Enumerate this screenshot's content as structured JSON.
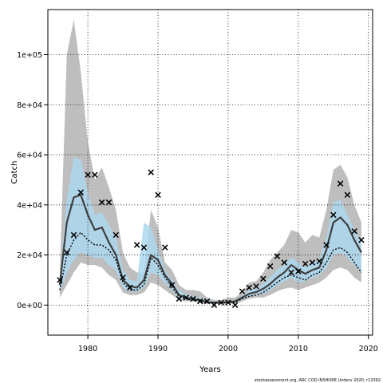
{
  "chart_data": {
    "type": "line",
    "title": "",
    "xlabel": "Years",
    "ylabel": "Catch",
    "xlim": [
      1974.3,
      2020.6
    ],
    "ylim": [
      -12000,
      118000
    ],
    "x_ticks": [
      1980,
      1990,
      2000,
      2010,
      2020
    ],
    "y_ticks": [
      0,
      20000,
      40000,
      60000,
      80000,
      100000
    ],
    "x_tick_labels": [
      "1980",
      "1990",
      "2000",
      "2010",
      "2020"
    ],
    "y_tick_labels": [
      "0e+00",
      "2e+04",
      "4e+04",
      "6e+04",
      "8e+04",
      "1e+05"
    ],
    "grid": true,
    "footer": "stockassessment.org, ARC COD INSHORE Underv 2020, r13392",
    "colors": {
      "grey_band": "#bebebe",
      "blue_band": "#add8f0",
      "estimate_line": "#3f3f3f",
      "dotted_line": "#000000",
      "observed_marker": "#000000"
    },
    "years": [
      1976,
      1977,
      1978,
      1979,
      1980,
      1981,
      1982,
      1983,
      1984,
      1985,
      1986,
      1987,
      1988,
      1989,
      1990,
      1991,
      1992,
      1993,
      1994,
      1995,
      1996,
      1997,
      1998,
      1999,
      2000,
      2001,
      2002,
      2003,
      2004,
      2005,
      2006,
      2007,
      2008,
      2009,
      2010,
      2011,
      2012,
      2013,
      2014,
      2015,
      2016,
      2017,
      2018,
      2019
    ],
    "series": [
      {
        "role": "outer_band_upper",
        "values": [
          12000,
          100000,
          114000,
          93000,
          65000,
          50000,
          55000,
          47000,
          38000,
          21000,
          15000,
          13000,
          13000,
          38000,
          31000,
          17000,
          14000,
          8000,
          6000,
          6000,
          5500,
          3000,
          2000,
          2000,
          3000,
          3000,
          5000,
          9000,
          9500,
          13000,
          18000,
          21000,
          24000,
          30000,
          29000,
          25000,
          28000,
          27000,
          38000,
          54000,
          56000,
          51000,
          40000,
          33000
        ]
      },
      {
        "role": "outer_band_lower",
        "values": [
          3000,
          8000,
          13000,
          17000,
          16000,
          16000,
          15000,
          12000,
          10000,
          5000,
          4000,
          4000,
          5000,
          9000,
          8000,
          6000,
          4000,
          2000,
          1500,
          1500,
          1000,
          500,
          500,
          500,
          500,
          500,
          1500,
          2500,
          3000,
          3000,
          4000,
          5500,
          6500,
          7000,
          6000,
          7000,
          8000,
          9000,
          11000,
          14000,
          15000,
          14000,
          11000,
          9000
        ]
      },
      {
        "role": "inner_band_upper",
        "values": [
          10000,
          42000,
          59000,
          58000,
          45000,
          36000,
          37000,
          32000,
          27000,
          14000,
          10000,
          9500,
          33000,
          31000,
          22000,
          14000,
          10000,
          6000,
          4000,
          3500,
          3000,
          2000,
          1500,
          1500,
          1800,
          2000,
          3500,
          6000,
          6500,
          8500,
          11000,
          14000,
          16000,
          19000,
          17000,
          15000,
          17000,
          18000,
          27000,
          41000,
          42000,
          36000,
          30000,
          25000
        ]
      },
      {
        "role": "inner_band_lower",
        "values": [
          5000,
          13000,
          18000,
          21000,
          20000,
          19000,
          19000,
          16000,
          14000,
          7000,
          5500,
          5500,
          7000,
          13000,
          12000,
          9000,
          6000,
          3000,
          2200,
          2000,
          1500,
          900,
          700,
          700,
          900,
          1000,
          2300,
          3500,
          4200,
          4500,
          6000,
          8000,
          9500,
          11000,
          9000,
          9500,
          11000,
          12000,
          15000,
          20000,
          21000,
          19000,
          16000,
          13000
        ]
      },
      {
        "role": "estimate_line",
        "values": [
          8000,
          33000,
          43000,
          44000,
          36000,
          30000,
          31000,
          25000,
          20000,
          10000,
          7500,
          7000,
          10000,
          20000,
          18000,
          12000,
          8500,
          4000,
          3000,
          2500,
          2000,
          1200,
          1000,
          1000,
          1200,
          1500,
          3000,
          4500,
          5200,
          6500,
          8500,
          11000,
          13000,
          16000,
          14000,
          12500,
          14000,
          15000,
          22000,
          33000,
          35000,
          32000,
          26000,
          21000
        ]
      },
      {
        "role": "dotted_line",
        "values": [
          6000,
          20000,
          26000,
          29000,
          26000,
          24000,
          24000,
          22000,
          18000,
          9000,
          6000,
          6000,
          8000,
          19000,
          16000,
          11000,
          7000,
          3500,
          2500,
          2000,
          1500,
          1000,
          800,
          800,
          1000,
          1200,
          2500,
          3500,
          4000,
          5000,
          7000,
          9000,
          11000,
          12000,
          11000,
          10000,
          12000,
          13000,
          17000,
          22000,
          23000,
          21000,
          17000,
          13000
        ]
      }
    ],
    "observed": {
      "x": [
        1976,
        1977,
        1978,
        1979,
        1980,
        1981,
        1982,
        1983,
        1984,
        1985,
        1986,
        1987,
        1988,
        1989,
        1990,
        1991,
        1992,
        1993,
        1994,
        1995,
        1996,
        1997,
        1998,
        1999,
        2000,
        2001,
        2002,
        2003,
        2004,
        2005,
        2006,
        2007,
        2008,
        2009,
        2010,
        2011,
        2012,
        2013,
        2014,
        2015,
        2016,
        2017,
        2018,
        2019
      ],
      "y": [
        10000,
        21000,
        28000,
        45000,
        52000,
        52000,
        41000,
        41000,
        28000,
        11000,
        7000,
        24000,
        23000,
        53000,
        44000,
        23000,
        8000,
        2500,
        3000,
        2500,
        1500,
        1500,
        0,
        1000,
        1000,
        0,
        5500,
        7000,
        7500,
        10500,
        15500,
        19500,
        17000,
        13000,
        13500,
        16500,
        17000,
        17500,
        24000,
        36000,
        48500,
        44000,
        29500,
        26000
      ]
    }
  }
}
